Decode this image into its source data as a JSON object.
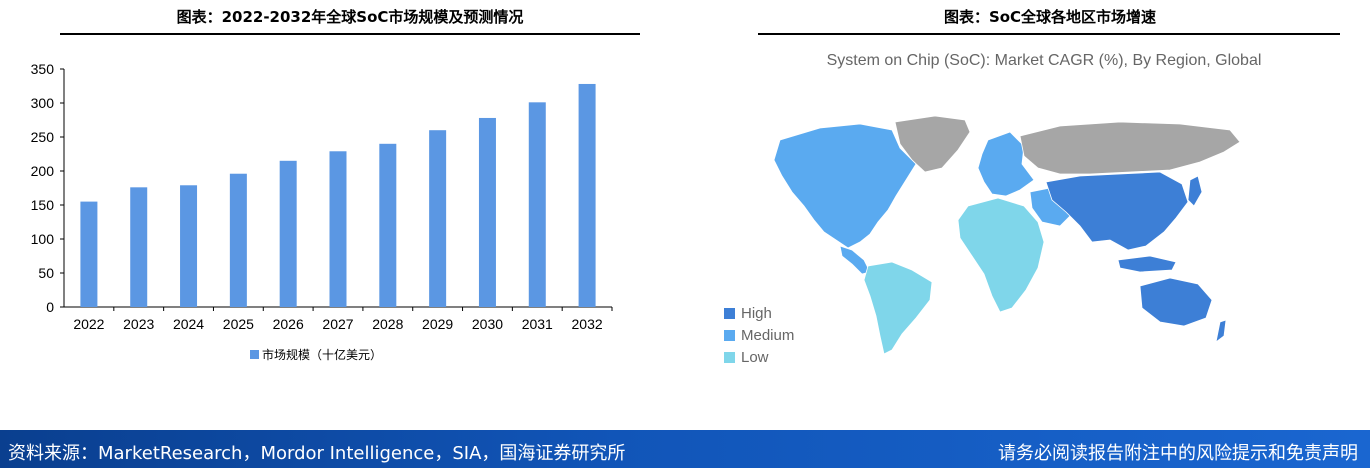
{
  "left_panel": {
    "title": "图表：2022-2032年全球SoC市场规模及预测情况"
  },
  "right_panel": {
    "title": "图表：SoC全球各地区市场增速",
    "map_title": "System on Chip (SoC): Market CAGR (%), By Region, Global",
    "legend": [
      {
        "label": "High",
        "color": "#3d7fd6"
      },
      {
        "label": "Medium",
        "color": "#5aaaf0"
      },
      {
        "label": "Low",
        "color": "#7fd6ea"
      }
    ],
    "no_data_color": "#a6a6a6"
  },
  "chart_data": {
    "type": "bar",
    "title": "",
    "xlabel": "",
    "ylabel": "",
    "categories": [
      "2022",
      "2023",
      "2024",
      "2025",
      "2026",
      "2027",
      "2028",
      "2029",
      "2030",
      "2031",
      "2032"
    ],
    "series": [
      {
        "name": "市场规模（十亿美元）",
        "values": [
          155,
          176,
          179,
          196,
          215,
          229,
          240,
          260,
          278,
          301,
          328
        ],
        "color": "#5b97e3"
      }
    ],
    "yticks": [
      "0",
      "50",
      "100",
      "150",
      "200",
      "250",
      "300",
      "350"
    ],
    "ylim": [
      0,
      350
    ],
    "grid": false,
    "legend_position": "bottom"
  },
  "footer": {
    "source": "资料来源：MarketResearch，Mordor Intelligence，SIA，国海证券研究所",
    "disclaimer": "请务必阅读报告附注中的风险提示和免责声明"
  }
}
